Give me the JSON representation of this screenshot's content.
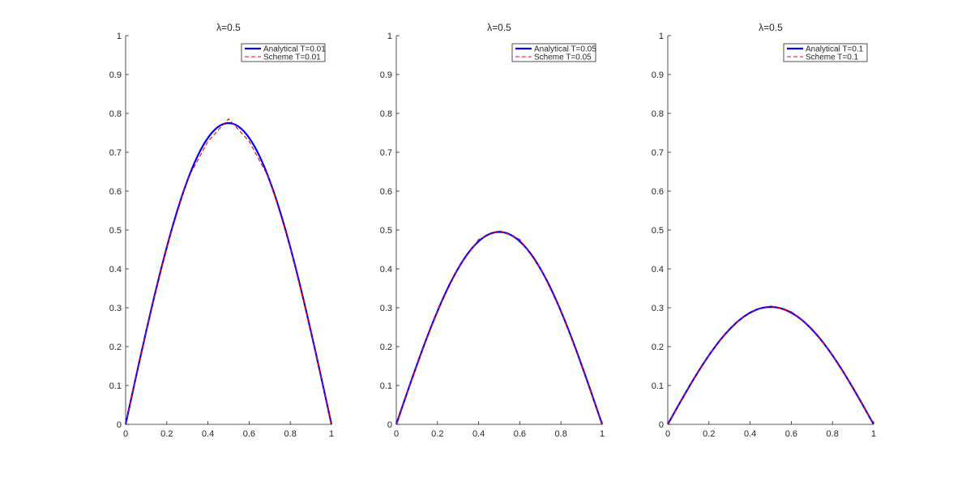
{
  "figure_background": "#ffffff",
  "chart_data": [
    {
      "type": "line",
      "title": "λ=0.5",
      "xlim": [
        0,
        1
      ],
      "ylim": [
        0,
        1
      ],
      "xticks": [
        "0",
        "0.2",
        "0.4",
        "0.6",
        "0.8",
        "1"
      ],
      "yticks": [
        "0",
        "0.1",
        "0.2",
        "0.3",
        "0.4",
        "0.5",
        "0.6",
        "0.7",
        "0.8",
        "0.9",
        "1"
      ],
      "legend_position": "top-right",
      "grid": false,
      "series": [
        {
          "name": "Analytical T=0.01",
          "color": "#0000ff",
          "style": "solid",
          "peak": 0.775,
          "x": [
            0,
            0.1,
            0.2,
            0.3,
            0.4,
            0.5,
            0.6,
            0.7,
            0.8,
            0.9,
            1
          ],
          "y": [
            0,
            0.239,
            0.455,
            0.627,
            0.737,
            0.775,
            0.737,
            0.627,
            0.455,
            0.239,
            0
          ]
        },
        {
          "name": "Scheme T=0.01",
          "color": "#ff0000",
          "style": "dashed",
          "x": [
            0,
            0.1,
            0.2,
            0.3,
            0.4,
            0.5,
            0.6,
            0.7,
            0.8,
            0.9,
            1
          ],
          "y": [
            0,
            0.24,
            0.456,
            0.63,
            0.728,
            0.786,
            0.728,
            0.63,
            0.456,
            0.24,
            0
          ]
        }
      ]
    },
    {
      "type": "line",
      "title": "λ=0.5",
      "xlim": [
        0,
        1
      ],
      "ylim": [
        0,
        1
      ],
      "xticks": [
        "0",
        "0.2",
        "0.4",
        "0.6",
        "0.8",
        "1"
      ],
      "yticks": [
        "0",
        "0.1",
        "0.2",
        "0.3",
        "0.4",
        "0.5",
        "0.6",
        "0.7",
        "0.8",
        "0.9",
        "1"
      ],
      "legend_position": "top-right",
      "grid": false,
      "series": [
        {
          "name": "Analytical T=0.05",
          "color": "#0000ff",
          "style": "solid",
          "peak": 0.495,
          "x": [
            0,
            0.1,
            0.2,
            0.3,
            0.4,
            0.5,
            0.6,
            0.7,
            0.8,
            0.9,
            1
          ],
          "y": [
            0,
            0.153,
            0.291,
            0.4,
            0.471,
            0.495,
            0.471,
            0.4,
            0.291,
            0.153,
            0
          ]
        },
        {
          "name": "Scheme T=0.05",
          "color": "#ff0000",
          "style": "dashed",
          "x": [
            0,
            0.1,
            0.2,
            0.3,
            0.4,
            0.5,
            0.6,
            0.7,
            0.8,
            0.9,
            1
          ],
          "y": [
            0,
            0.153,
            0.292,
            0.402,
            0.476,
            0.499,
            0.476,
            0.402,
            0.292,
            0.153,
            0
          ]
        }
      ]
    },
    {
      "type": "line",
      "title": "λ=0.5",
      "xlim": [
        0,
        1
      ],
      "ylim": [
        0,
        1
      ],
      "xticks": [
        "0",
        "0.2",
        "0.4",
        "0.6",
        "0.8",
        "1"
      ],
      "yticks": [
        "0",
        "0.1",
        "0.2",
        "0.3",
        "0.4",
        "0.5",
        "0.6",
        "0.7",
        "0.8",
        "0.9",
        "1"
      ],
      "legend_position": "top-right",
      "grid": false,
      "series": [
        {
          "name": "Analytical T=0.1",
          "color": "#0000ff",
          "style": "solid",
          "peak": 0.302,
          "x": [
            0,
            0.1,
            0.2,
            0.3,
            0.4,
            0.5,
            0.6,
            0.7,
            0.8,
            0.9,
            1
          ],
          "y": [
            0,
            0.093,
            0.177,
            0.244,
            0.287,
            0.302,
            0.287,
            0.244,
            0.177,
            0.093,
            0
          ]
        },
        {
          "name": "Scheme T=0.1",
          "color": "#ff0000",
          "style": "dashed",
          "x": [
            0,
            0.1,
            0.2,
            0.3,
            0.4,
            0.5,
            0.6,
            0.7,
            0.8,
            0.9,
            1
          ],
          "y": [
            0,
            0.094,
            0.178,
            0.247,
            0.29,
            0.305,
            0.29,
            0.247,
            0.178,
            0.094,
            0
          ]
        }
      ]
    }
  ]
}
